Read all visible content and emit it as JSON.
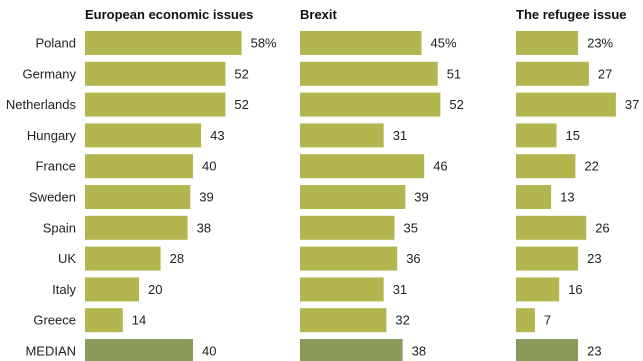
{
  "chart_data": {
    "type": "bar",
    "orientation": "horizontal",
    "categories": [
      "Poland",
      "Germany",
      "Netherlands",
      "Hungary",
      "France",
      "Sweden",
      "Spain",
      "UK",
      "Italy",
      "Greece",
      "MEDIAN"
    ],
    "series": [
      {
        "name": "European economic issues",
        "values": [
          58,
          52,
          52,
          43,
          40,
          39,
          38,
          28,
          20,
          14,
          40
        ]
      },
      {
        "name": "Brexit",
        "values": [
          45,
          51,
          52,
          31,
          46,
          39,
          35,
          36,
          31,
          32,
          38
        ]
      },
      {
        "name": "The refugee issue",
        "values": [
          23,
          27,
          37,
          15,
          22,
          13,
          26,
          23,
          16,
          7,
          23
        ]
      }
    ],
    "value_labels": [
      [
        "58%",
        "52",
        "52",
        "43",
        "40",
        "39",
        "38",
        "28",
        "20",
        "14",
        "40"
      ],
      [
        "45%",
        "51",
        "52",
        "31",
        "46",
        "39",
        "35",
        "36",
        "31",
        "32",
        "38"
      ],
      [
        "23%",
        "27",
        "37",
        "15",
        "22",
        "13",
        "26",
        "23",
        "16",
        "7",
        "23"
      ]
    ],
    "xlim": [
      0,
      60
    ],
    "grid": false,
    "legend": "none",
    "colors": {
      "bar": "#b3b64f",
      "median_bar": "#8a9a5b"
    }
  }
}
